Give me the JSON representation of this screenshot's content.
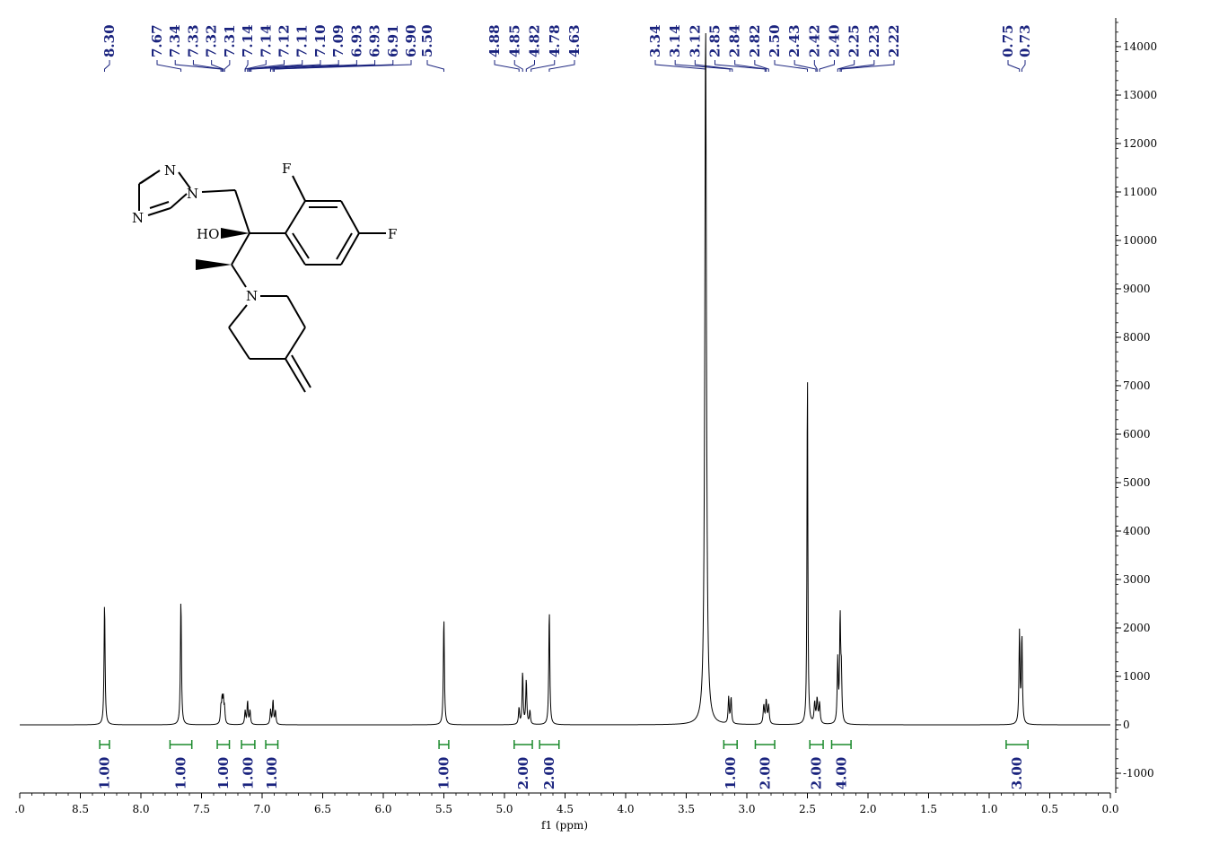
{
  "colors": {
    "spectrum": "#000000",
    "peak_label": "#1a237e",
    "integral": "#1b8a2c",
    "integral_label": "#1a237e",
    "axis": "#000000"
  },
  "chart_data": {
    "type": "line",
    "title": "",
    "xlabel": "f1 (ppm)",
    "ylabel": "",
    "x_reversed": true,
    "xlim": [
      9.0,
      0.0
    ],
    "ylim": [
      -1500,
      14500
    ],
    "x_ticks": [
      ".0",
      "8.5",
      "8.0",
      "7.5",
      "7.0",
      "6.5",
      "6.0",
      "5.5",
      "5.0",
      "4.5",
      "4.0",
      "3.5",
      "3.0",
      "2.5",
      "2.0",
      "1.5",
      "1.0",
      "0.5",
      "0.0"
    ],
    "x_tick_values": [
      9.0,
      8.5,
      8.0,
      7.5,
      7.0,
      6.5,
      6.0,
      5.5,
      5.0,
      4.5,
      4.0,
      3.5,
      3.0,
      2.5,
      2.0,
      1.5,
      1.0,
      0.5,
      0.0
    ],
    "y_ticks": [
      "14000",
      "13000",
      "12000",
      "11000",
      "10000",
      "9000",
      "8000",
      "7000",
      "6000",
      "5000",
      "4000",
      "3000",
      "2000",
      "1000",
      "0",
      "-1000"
    ],
    "y_tick_values": [
      14000,
      13000,
      12000,
      11000,
      10000,
      9000,
      8000,
      7000,
      6000,
      5000,
      4000,
      3000,
      2000,
      1000,
      0,
      -1000
    ],
    "grid": false,
    "peak_labels": [
      "8.30",
      "7.67",
      "7.34",
      "7.33",
      "7.32",
      "7.31",
      "7.14",
      "7.14",
      "7.12",
      "7.11",
      "7.10",
      "7.09",
      "6.93",
      "6.93",
      "6.91",
      "6.90",
      "5.50",
      "4.88",
      "4.85",
      "4.82",
      "4.78",
      "4.63",
      "3.34",
      "3.14",
      "3.12",
      "2.85",
      "2.84",
      "2.82",
      "2.50",
      "2.43",
      "2.42",
      "2.40",
      "2.25",
      "2.23",
      "2.22",
      "0.75",
      "0.73"
    ],
    "integrals": [
      {
        "from": 8.34,
        "to": 8.26,
        "value": "1.00"
      },
      {
        "from": 7.76,
        "to": 7.58,
        "value": "1.00"
      },
      {
        "from": 7.37,
        "to": 7.27,
        "value": "1.00"
      },
      {
        "from": 7.17,
        "to": 7.06,
        "value": "1.00"
      },
      {
        "from": 6.97,
        "to": 6.87,
        "value": "1.00"
      },
      {
        "from": 5.54,
        "to": 5.46,
        "value": "1.00"
      },
      {
        "from": 4.92,
        "to": 4.77,
        "value": "2.00"
      },
      {
        "from": 4.71,
        "to": 4.55,
        "value": "2.00"
      },
      {
        "from": 3.19,
        "to": 3.08,
        "value": "1.00"
      },
      {
        "from": 2.93,
        "to": 2.77,
        "value": "2.00"
      },
      {
        "from": 2.48,
        "to": 2.37,
        "value": "2.00"
      },
      {
        "from": 2.3,
        "to": 2.14,
        "value": "4.00"
      },
      {
        "from": 0.86,
        "to": 0.68,
        "value": "3.00"
      }
    ],
    "series": [
      {
        "peaks": [
          {
            "ppm": 8.3,
            "height": 2530,
            "width": 0.005
          },
          {
            "ppm": 7.67,
            "height": 2600,
            "width": 0.005
          },
          {
            "ppm": 7.34,
            "height": 330,
            "width": 0.005
          },
          {
            "ppm": 7.33,
            "height": 470,
            "width": 0.005
          },
          {
            "ppm": 7.32,
            "height": 470,
            "width": 0.005
          },
          {
            "ppm": 7.31,
            "height": 300,
            "width": 0.005
          },
          {
            "ppm": 7.14,
            "height": 280,
            "width": 0.005
          },
          {
            "ppm": 7.12,
            "height": 480,
            "width": 0.005
          },
          {
            "ppm": 7.1,
            "height": 290,
            "width": 0.005
          },
          {
            "ppm": 6.93,
            "height": 300,
            "width": 0.005
          },
          {
            "ppm": 6.91,
            "height": 500,
            "width": 0.005
          },
          {
            "ppm": 6.89,
            "height": 280,
            "width": 0.005
          },
          {
            "ppm": 5.5,
            "height": 2220,
            "width": 0.005
          },
          {
            "ppm": 4.88,
            "height": 340,
            "width": 0.005
          },
          {
            "ppm": 4.85,
            "height": 1080,
            "width": 0.005
          },
          {
            "ppm": 4.82,
            "height": 920,
            "width": 0.005
          },
          {
            "ppm": 4.79,
            "height": 280,
            "width": 0.005
          },
          {
            "ppm": 4.63,
            "height": 2370,
            "width": 0.005
          },
          {
            "ppm": 3.34,
            "height": 14500,
            "width": 0.008
          },
          {
            "ppm": 3.15,
            "height": 540,
            "width": 0.005
          },
          {
            "ppm": 3.13,
            "height": 540,
            "width": 0.005
          },
          {
            "ppm": 2.86,
            "height": 380,
            "width": 0.006
          },
          {
            "ppm": 2.84,
            "height": 480,
            "width": 0.006
          },
          {
            "ppm": 2.82,
            "height": 380,
            "width": 0.006
          },
          {
            "ppm": 2.5,
            "height": 7500,
            "width": 0.004
          },
          {
            "ppm": 2.44,
            "height": 420,
            "width": 0.006
          },
          {
            "ppm": 2.42,
            "height": 500,
            "width": 0.006
          },
          {
            "ppm": 2.4,
            "height": 420,
            "width": 0.006
          },
          {
            "ppm": 2.25,
            "height": 1300,
            "width": 0.005
          },
          {
            "ppm": 2.23,
            "height": 2150,
            "width": 0.005
          },
          {
            "ppm": 2.22,
            "height": 950,
            "width": 0.005
          },
          {
            "ppm": 0.75,
            "height": 1880,
            "width": 0.005
          },
          {
            "ppm": 0.73,
            "height": 1800,
            "width": 0.005
          }
        ]
      }
    ]
  },
  "structure": {
    "atom_labels": [
      "N",
      "N",
      "N",
      "F",
      "F",
      "HO",
      "N"
    ]
  }
}
